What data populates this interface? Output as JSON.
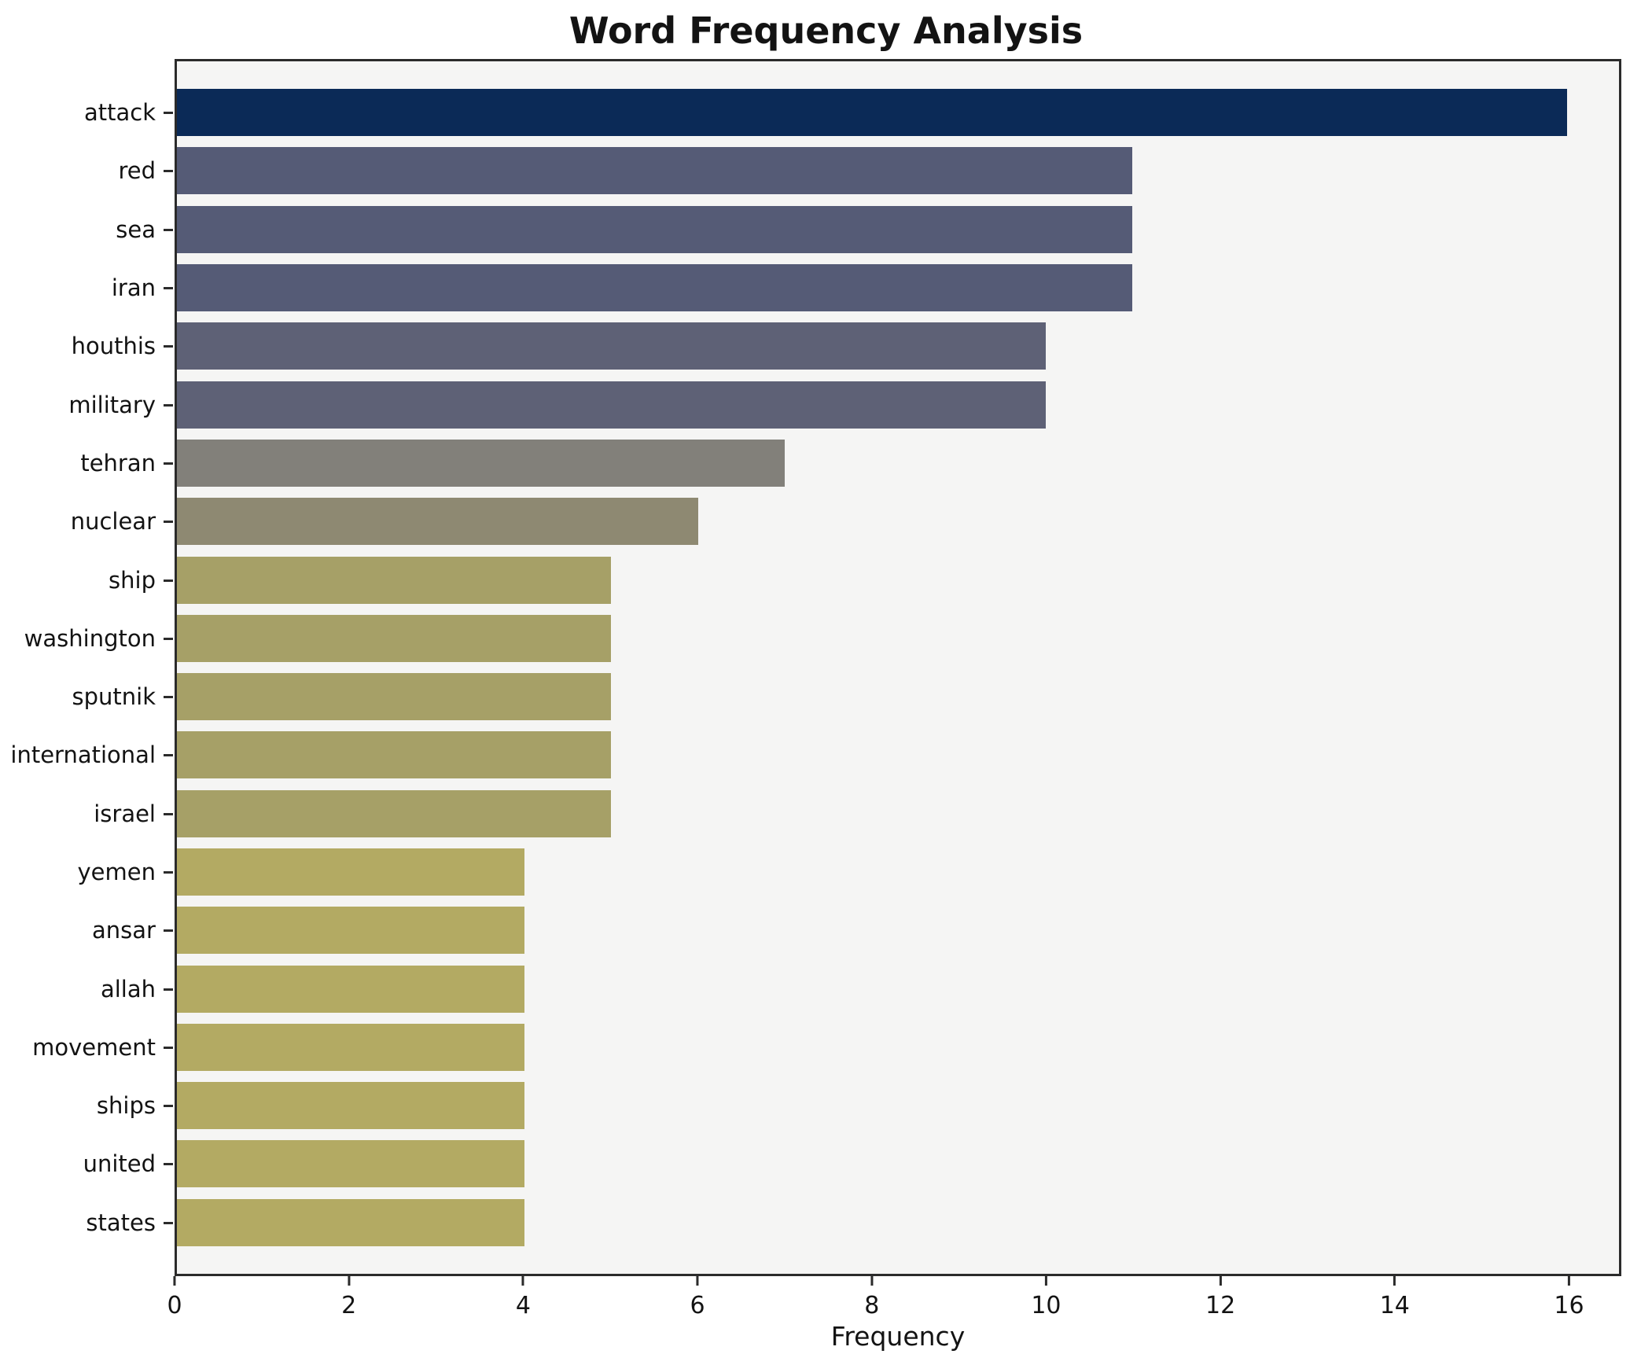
{
  "chart_data": {
    "type": "bar",
    "orientation": "horizontal",
    "title": "Word Frequency Analysis",
    "xlabel": "Frequency",
    "ylabel": "",
    "categories": [
      "attack",
      "red",
      "sea",
      "iran",
      "houthis",
      "military",
      "tehran",
      "nuclear",
      "ship",
      "washington",
      "sputnik",
      "international",
      "israel",
      "yemen",
      "ansar",
      "allah",
      "movement",
      "ships",
      "united",
      "states"
    ],
    "values": [
      16,
      11,
      11,
      11,
      10,
      10,
      7,
      6,
      5,
      5,
      5,
      5,
      5,
      4,
      4,
      4,
      4,
      4,
      4,
      4
    ],
    "bar_colors": [
      "#0b2a57",
      "#555b76",
      "#555b76",
      "#555b76",
      "#5e6176",
      "#5e6176",
      "#82807a",
      "#8e8972",
      "#a6a067",
      "#a6a067",
      "#a6a067",
      "#a6a067",
      "#a6a067",
      "#b3aa63",
      "#b3aa63",
      "#b3aa63",
      "#b3aa63",
      "#b3aa63",
      "#b3aa63",
      "#b3aa63"
    ],
    "x_ticks": [
      0,
      2,
      4,
      6,
      8,
      10,
      12,
      14,
      16
    ],
    "xlim": [
      0,
      16.6
    ],
    "plot_background": "#f5f5f4",
    "grid": false,
    "legend_position": "none"
  }
}
